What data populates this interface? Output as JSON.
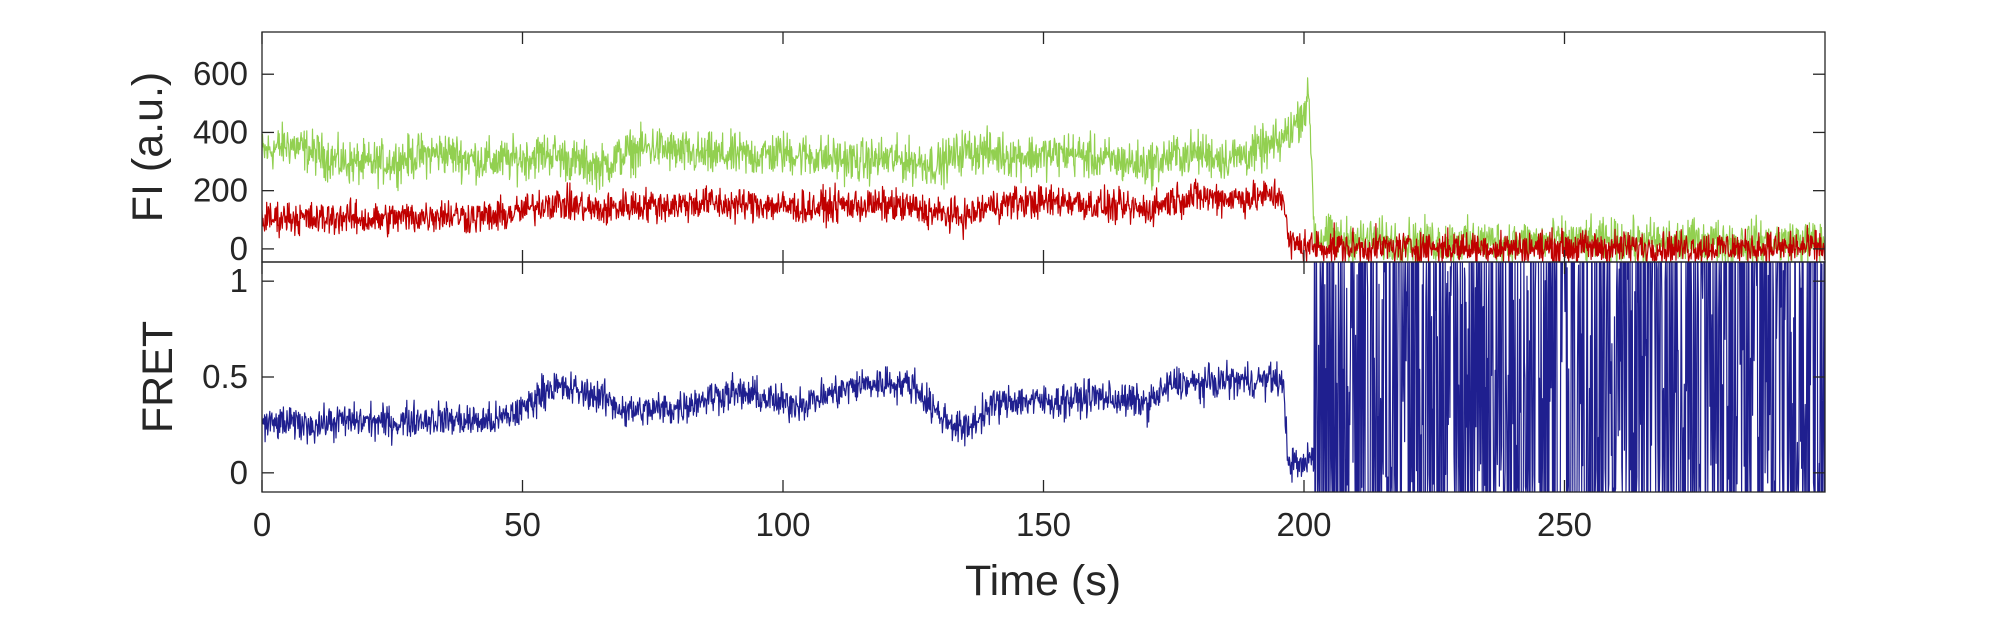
{
  "chart_data": [
    {
      "type": "line",
      "panel": "top",
      "title": "",
      "xlabel": "",
      "ylabel": "FI (a.u.)",
      "xlim": [
        0,
        300
      ],
      "ylim": [
        -45,
        745
      ],
      "yticks": [
        0,
        200,
        400,
        600
      ],
      "ytick_labels": [
        "0",
        "200",
        "400",
        "600"
      ],
      "grid": false,
      "series": [
        {
          "color": "#92d050",
          "line_width": 1.2,
          "x": [
            0,
            5,
            10,
            15,
            20,
            25,
            30,
            35,
            40,
            45,
            50,
            55,
            60,
            65,
            70,
            75,
            80,
            85,
            90,
            95,
            100,
            105,
            110,
            115,
            120,
            125,
            130,
            135,
            140,
            145,
            150,
            155,
            160,
            165,
            170,
            175,
            180,
            185,
            190,
            195,
            198,
            201,
            202,
            203,
            210,
            220,
            230,
            240,
            250,
            260,
            270,
            280,
            290,
            300
          ],
          "y": [
            330,
            360,
            330,
            300,
            290,
            300,
            320,
            330,
            310,
            300,
            310,
            330,
            300,
            280,
            330,
            350,
            330,
            320,
            320,
            320,
            330,
            320,
            310,
            300,
            310,
            300,
            290,
            340,
            330,
            320,
            320,
            330,
            310,
            300,
            290,
            320,
            330,
            310,
            330,
            360,
            420,
            510,
            50,
            40,
            30,
            25,
            25,
            25,
            25,
            25,
            25,
            25,
            25,
            25
          ],
          "noise_amplitude": 110
        },
        {
          "color": "#c00000",
          "line_width": 1.2,
          "x": [
            0,
            5,
            10,
            15,
            20,
            25,
            30,
            35,
            40,
            45,
            50,
            55,
            60,
            65,
            70,
            75,
            80,
            85,
            90,
            95,
            100,
            105,
            110,
            115,
            120,
            125,
            130,
            135,
            140,
            145,
            150,
            155,
            160,
            165,
            170,
            175,
            180,
            185,
            190,
            195,
            196,
            197,
            200,
            210,
            220,
            230,
            240,
            250,
            260,
            270,
            280,
            290,
            300
          ],
          "y": [
            100,
            110,
            100,
            110,
            100,
            105,
            110,
            120,
            110,
            110,
            130,
            160,
            150,
            130,
            150,
            150,
            150,
            160,
            150,
            155,
            145,
            140,
            150,
            150,
            150,
            140,
            120,
            110,
            150,
            160,
            160,
            165,
            150,
            140,
            135,
            170,
            180,
            175,
            175,
            185,
            185,
            20,
            10,
            5,
            5,
            5,
            5,
            5,
            5,
            5,
            5,
            5,
            5
          ],
          "noise_amplitude": 85
        }
      ]
    },
    {
      "type": "line",
      "panel": "bottom",
      "title": "",
      "xlabel": "Time (s)",
      "ylabel": "FRET",
      "xlim": [
        0,
        300
      ],
      "ylim": [
        -0.1,
        1.1
      ],
      "xticks": [
        0,
        50,
        100,
        150,
        200,
        250
      ],
      "xtick_labels": [
        "0",
        "50",
        "100",
        "150",
        "200",
        "250"
      ],
      "yticks": [
        0,
        0.5,
        1
      ],
      "ytick_labels": [
        "0",
        "0.5",
        "1"
      ],
      "grid": false,
      "series": [
        {
          "color": "#1f1f8f",
          "line_width": 1.2,
          "x": [
            0,
            5,
            10,
            15,
            20,
            25,
            30,
            35,
            40,
            45,
            50,
            55,
            60,
            65,
            70,
            75,
            80,
            85,
            90,
            95,
            100,
            105,
            110,
            115,
            120,
            125,
            130,
            135,
            140,
            145,
            150,
            155,
            160,
            165,
            170,
            175,
            180,
            185,
            190,
            195,
            196,
            197,
            200,
            201
          ],
          "y": [
            0.25,
            0.26,
            0.25,
            0.27,
            0.27,
            0.26,
            0.28,
            0.28,
            0.27,
            0.27,
            0.33,
            0.45,
            0.43,
            0.4,
            0.32,
            0.33,
            0.34,
            0.39,
            0.42,
            0.4,
            0.36,
            0.37,
            0.42,
            0.46,
            0.47,
            0.46,
            0.3,
            0.22,
            0.35,
            0.38,
            0.37,
            0.38,
            0.4,
            0.38,
            0.36,
            0.47,
            0.46,
            0.48,
            0.48,
            0.49,
            0.45,
            0.06,
            0.03,
            0.08
          ],
          "noise_amplitude": 0.13,
          "post_bleach_random_from_x": 202
        }
      ]
    }
  ]
}
